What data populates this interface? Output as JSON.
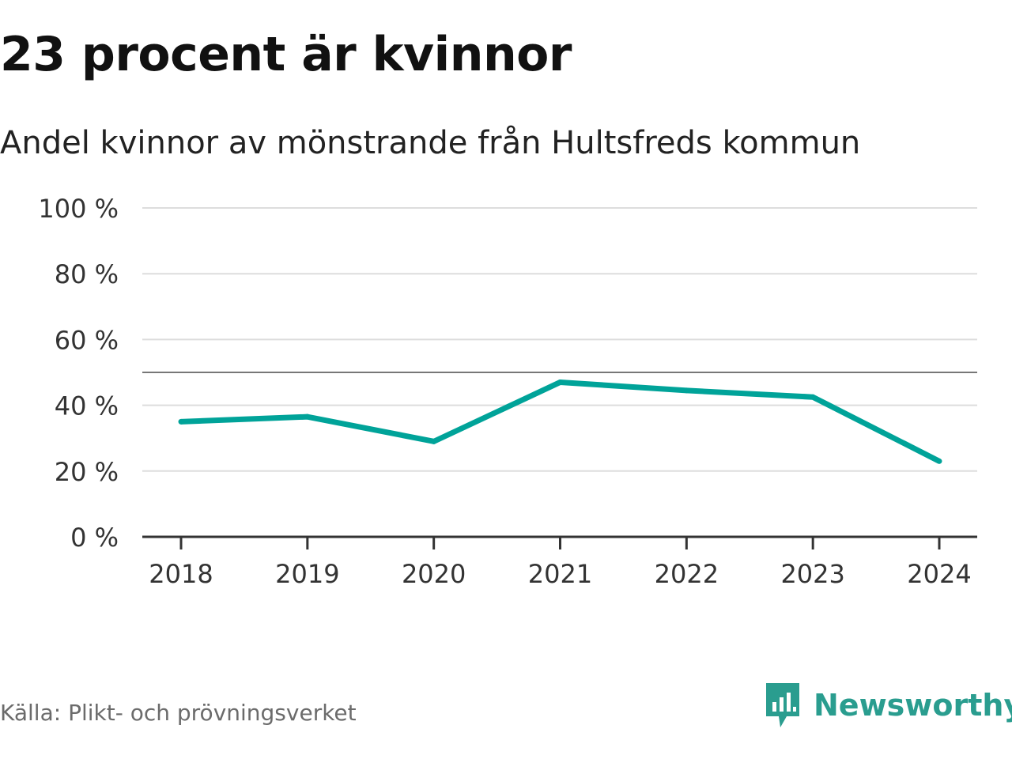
{
  "title": "23 procent är kvinnor",
  "subtitle": "Andel kvinnor av mönstrande från Hultsfreds kommun",
  "source": "Källa: Plikt- och prövningsverket",
  "brand": "Newsworthy",
  "colors": {
    "line": "#00a399",
    "grid": "#dddddd",
    "reference": "#777777",
    "axis": "#333333",
    "brand": "#2a9d8f"
  },
  "chart_data": {
    "type": "line",
    "categories": [
      "2018",
      "2019",
      "2020",
      "2021",
      "2022",
      "2023",
      "2024"
    ],
    "series": [
      {
        "values": [
          35,
          36.5,
          29,
          47,
          44.5,
          42.5,
          23
        ]
      }
    ],
    "y_ticks": [
      "0 %",
      "20 %",
      "40 %",
      "60 %",
      "80 %",
      "100 %"
    ],
    "ylim": [
      0,
      100
    ],
    "reference_line": 50,
    "grid": true,
    "legend": "none"
  }
}
